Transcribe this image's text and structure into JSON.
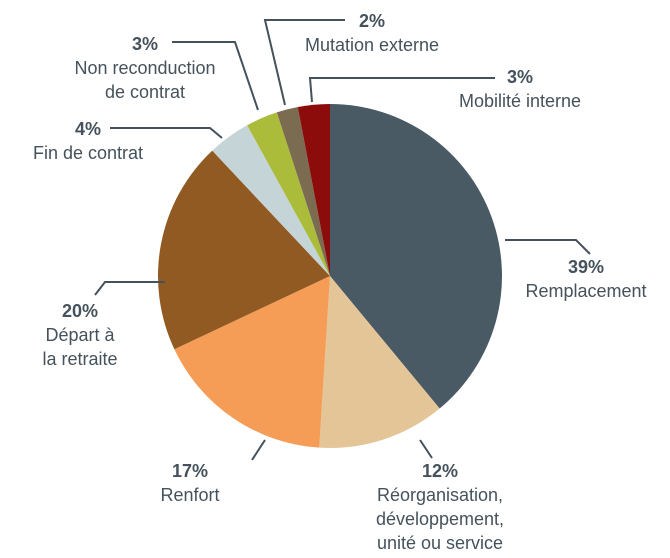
{
  "chart_data": {
    "type": "pie",
    "categories": [
      [
        "Remplacement"
      ],
      [
        "Réorganisation,",
        "développement,",
        "unité ou service"
      ],
      [
        "Renfort"
      ],
      [
        "Départ à",
        "la retraite"
      ],
      [
        "Fin de contrat"
      ],
      [
        "Non reconduction",
        "de contrat"
      ],
      [
        "Mutation externe"
      ],
      [
        "Mobilité interne"
      ]
    ],
    "values": [
      39,
      12,
      17,
      20,
      4,
      3,
      2,
      3
    ],
    "value_labels": [
      "39%",
      "12%",
      "17%",
      "20%",
      "4%",
      "3%",
      "2%",
      "3%"
    ],
    "colors": [
      "#495a64",
      "#e4c597",
      "#f59c57",
      "#905a22",
      "#c4d4d7",
      "#abbc3b",
      "#7b6b50",
      "#8c0b0b"
    ]
  }
}
